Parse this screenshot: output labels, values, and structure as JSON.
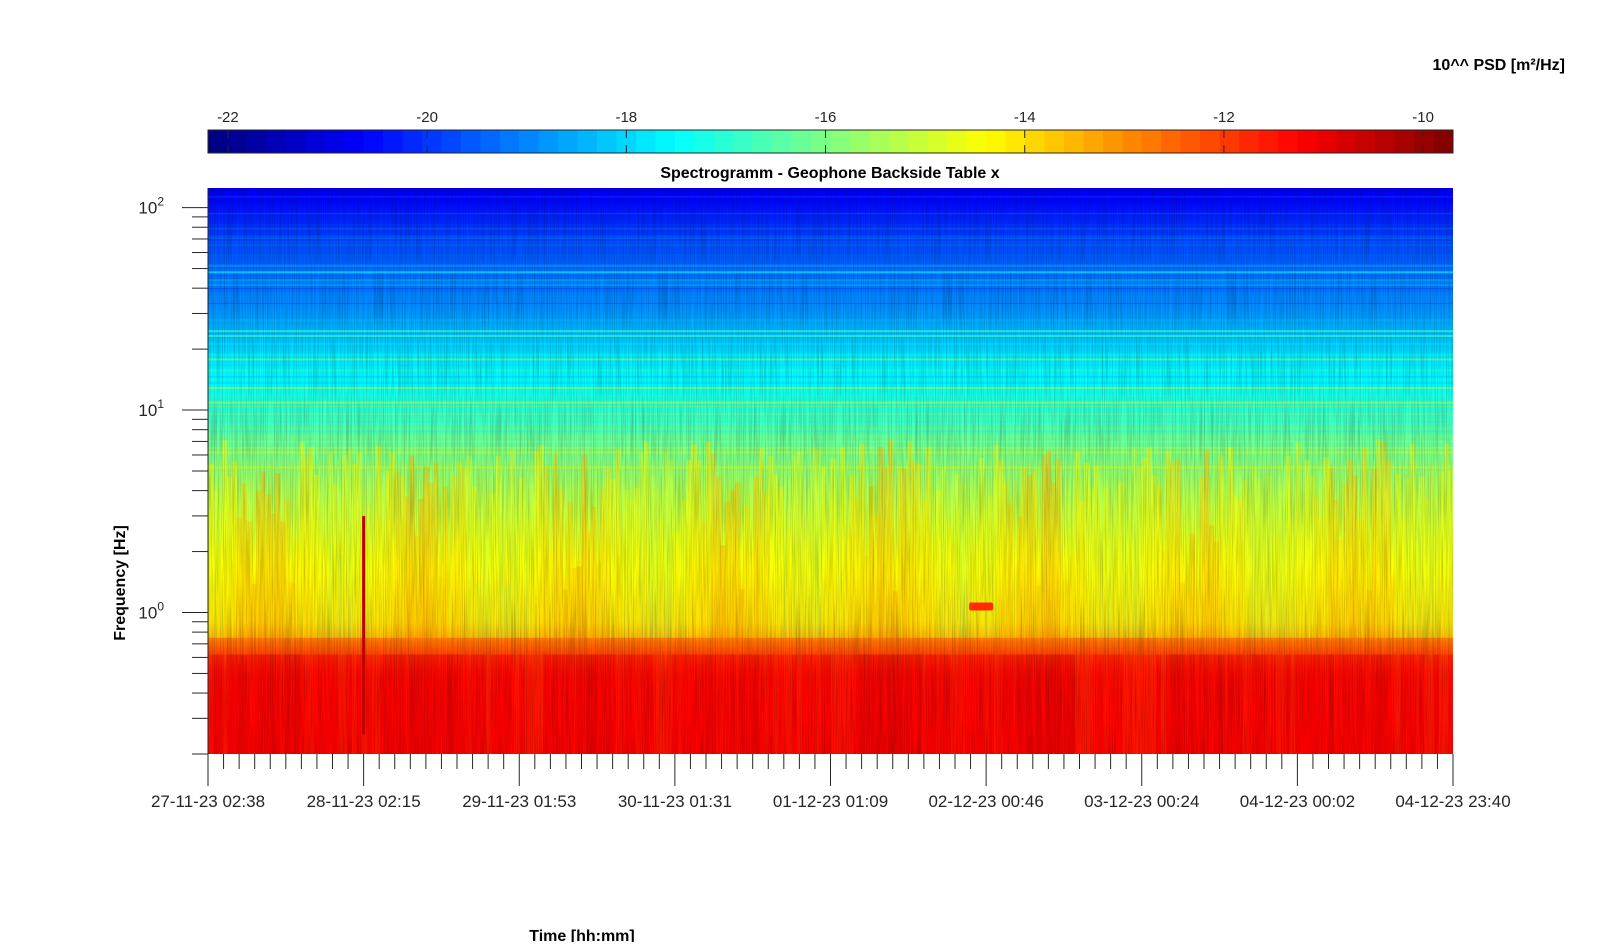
{
  "chart_data": {
    "type": "heatmap",
    "title": "Spectrogramm - Geophone Backside Table x",
    "xlabel": "Time [hh:mm]",
    "ylabel": "Frequency [Hz]",
    "colorbar": {
      "label": "10^^ PSD [m²/Hz]",
      "range": [
        -22.2,
        -9.7
      ],
      "ticks": [
        -22,
        -20,
        -18,
        -16,
        -14,
        -12,
        -10
      ],
      "tick_labels": [
        "-22",
        "-20",
        "-18",
        "-16",
        "-14",
        "-12",
        "-10"
      ],
      "colormap": "jet",
      "location": "top"
    },
    "x_axis": {
      "tick_labels": [
        "27-11-23 02:38",
        "28-11-23 02:15",
        "29-11-23 01:53",
        "30-11-23 01:31",
        "01-12-23 01:09",
        "02-12-23 00:46",
        "03-12-23 00:24",
        "04-12-23 00:02",
        "04-12-23 23:40"
      ],
      "minor_per_major": 10
    },
    "y_axis": {
      "scale": "log",
      "range": [
        0.2,
        125
      ],
      "major_ticks": [
        1,
        10,
        100
      ],
      "major_tick_labels": [
        {
          "base": "10",
          "exp": "0"
        },
        {
          "base": "10",
          "exp": "1"
        },
        {
          "base": "10",
          "exp": "2"
        }
      ]
    },
    "band_profile_log10_psd": [
      {
        "freq": 0.2,
        "value": -11.2
      },
      {
        "freq": 0.5,
        "value": -11.4
      },
      {
        "freq": 0.7,
        "value": -12.5
      },
      {
        "freq": 0.9,
        "value": -13.8
      },
      {
        "freq": 2.0,
        "value": -14.6
      },
      {
        "freq": 4.0,
        "value": -15.4
      },
      {
        "freq": 7.0,
        "value": -16.3
      },
      {
        "freq": 12.0,
        "value": -17.3
      },
      {
        "freq": 18.0,
        "value": -17.8
      },
      {
        "freq": 30.0,
        "value": -18.8
      },
      {
        "freq": 60.0,
        "value": -19.6
      },
      {
        "freq": 125.0,
        "value": -20.8
      }
    ],
    "features": [
      {
        "kind": "impulse",
        "time": "28-11-23 02:15",
        "freq_range": [
          0.25,
          3
        ],
        "value": -10.5
      },
      {
        "kind": "event",
        "time": "02-12-23 00:46",
        "freq": 1.07,
        "value": -11.8
      }
    ]
  }
}
